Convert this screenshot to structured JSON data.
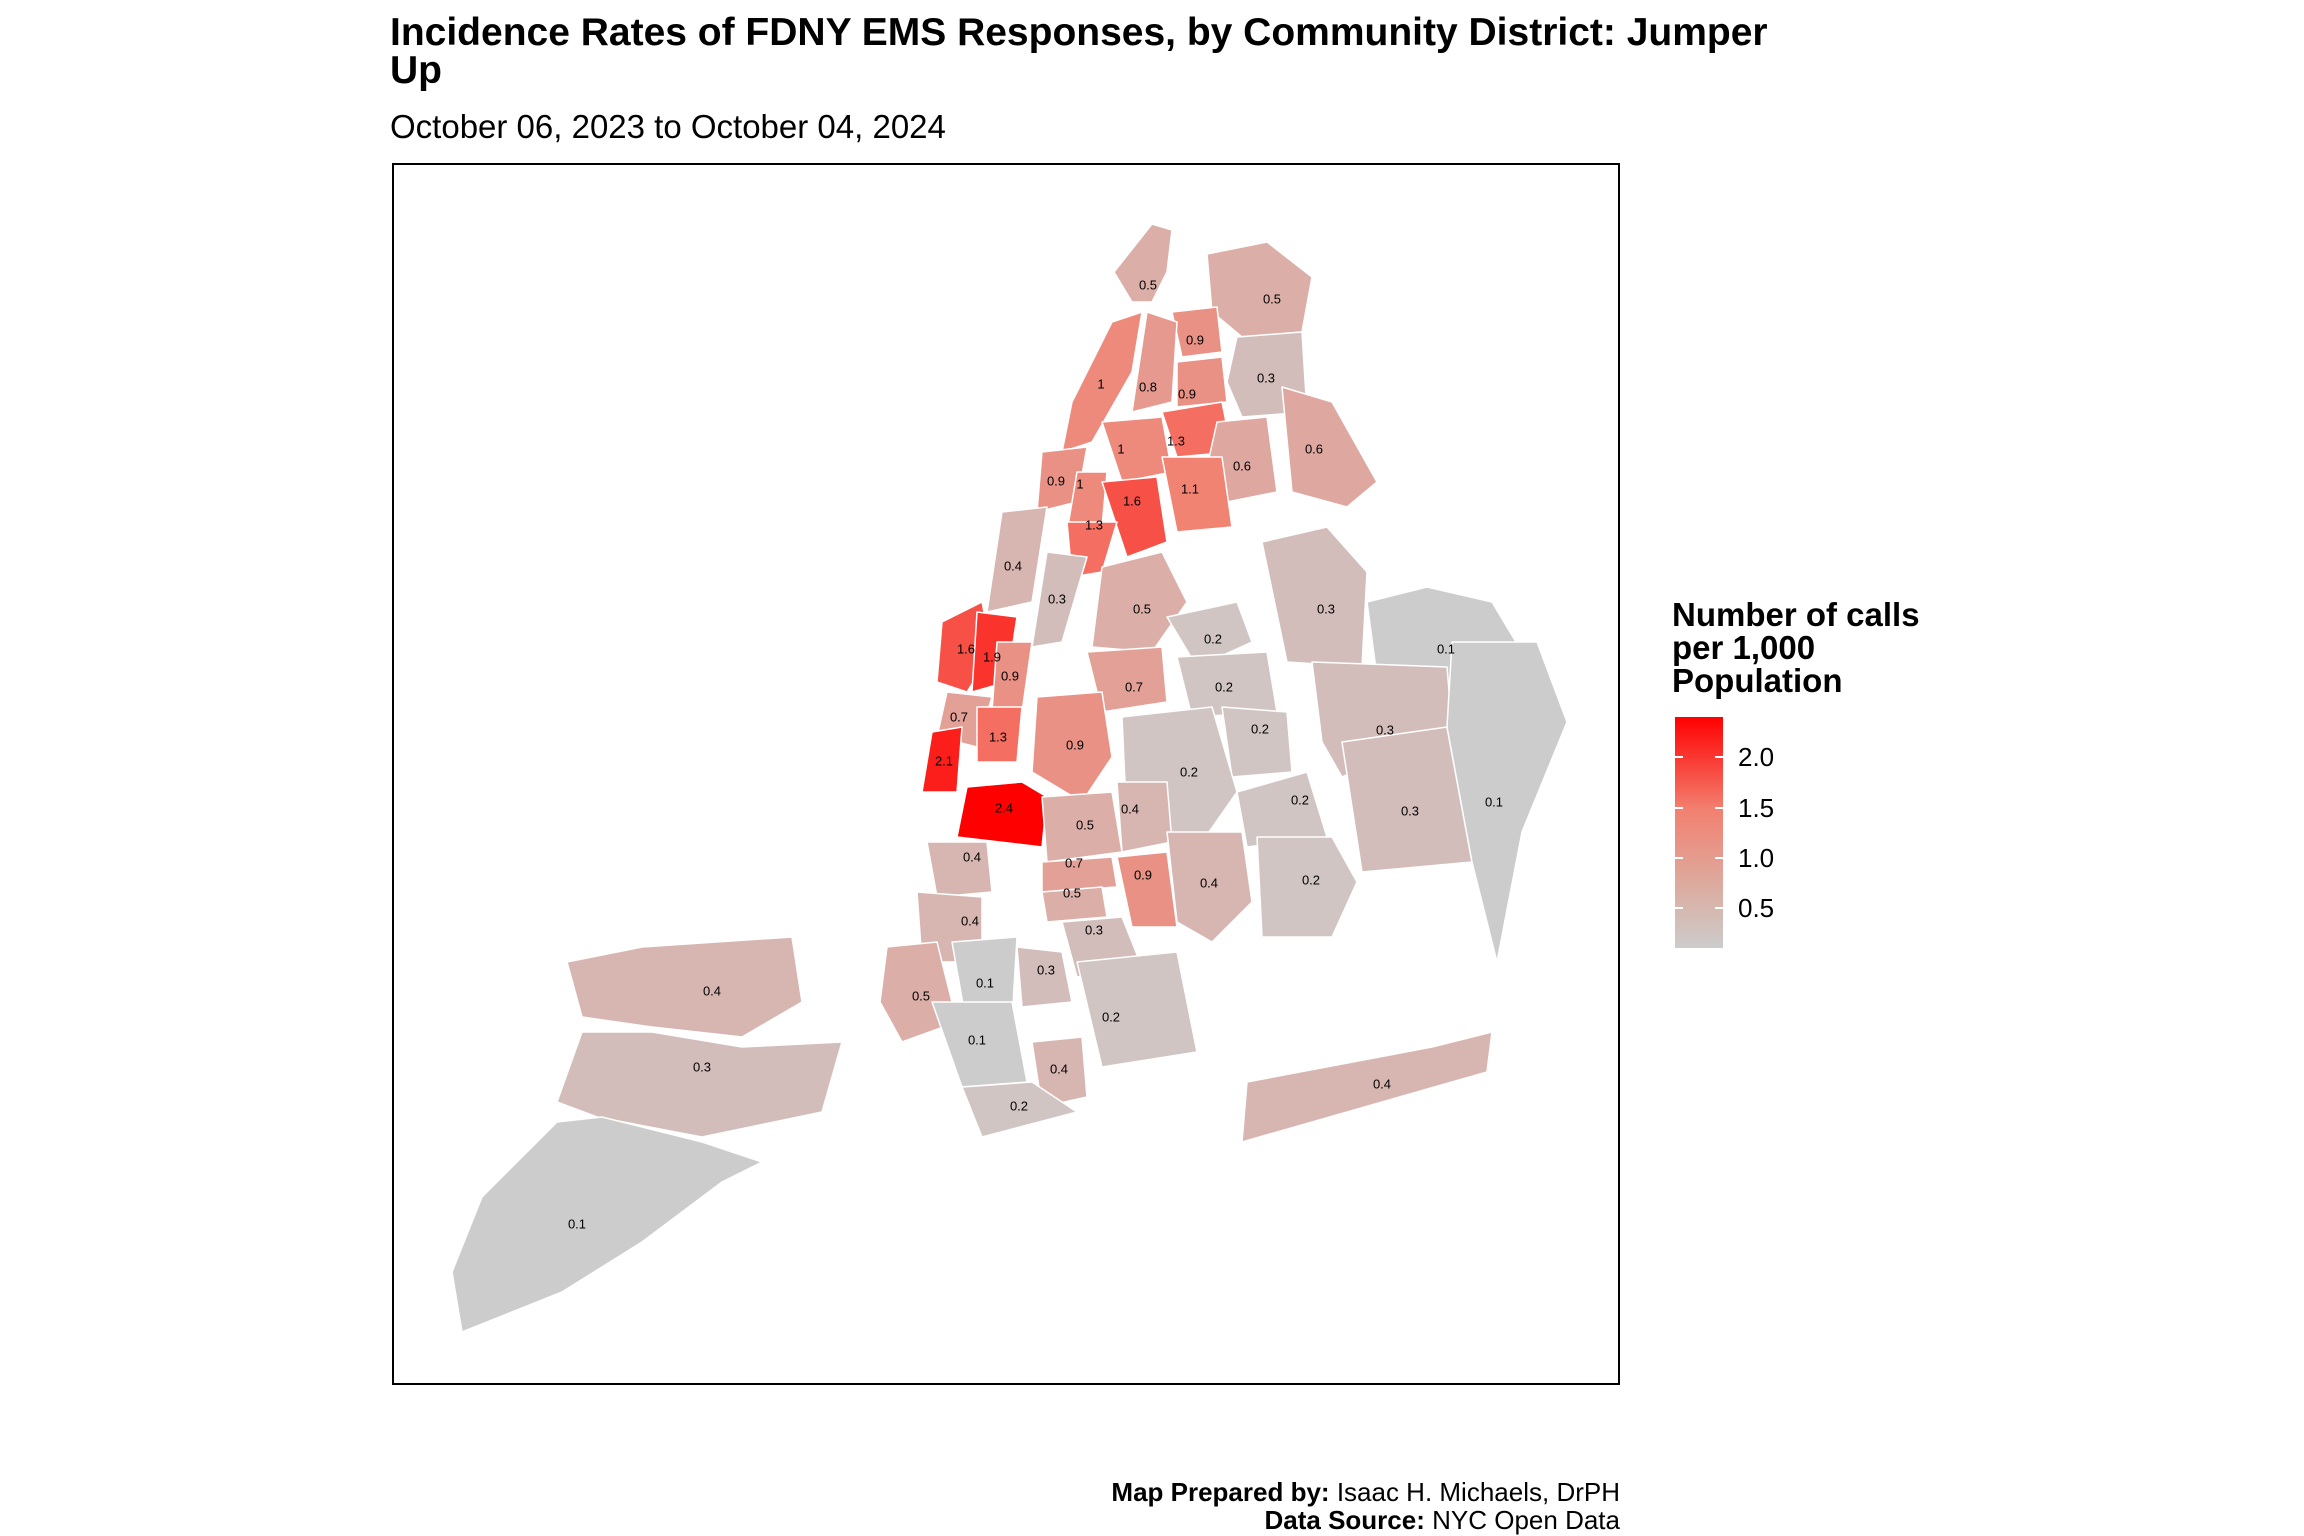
{
  "title": "Incidence Rates of FDNY EMS Responses, by Community District: Jumper Up",
  "subtitle": "October 06, 2023 to October 04, 2024",
  "legend": {
    "title_lines": [
      "Number of calls",
      "per 1,000",
      "Population"
    ],
    "ticks": [
      "2.0",
      "1.5",
      "1.0",
      "0.5"
    ],
    "colors": {
      "high": "#ff0000",
      "mid": "#f28070",
      "low": "#cccccc"
    },
    "range": [
      0.1,
      2.4
    ]
  },
  "caption": {
    "prepared_label": "Map Prepared by:",
    "prepared_value": "Isaac H. Michaels, DrPH",
    "source_label": "Data Source:",
    "source_value": "NYC Open Data"
  },
  "districts": [
    {
      "label": "0.5"
    },
    {
      "label": "0.5"
    },
    {
      "label": "0.9"
    },
    {
      "label": "0.3"
    },
    {
      "label": "1"
    },
    {
      "label": "0.8"
    },
    {
      "label": "0.9"
    },
    {
      "label": "1.3"
    },
    {
      "label": "1"
    },
    {
      "label": "0.6"
    },
    {
      "label": "0.6"
    },
    {
      "label": "0.9"
    },
    {
      "label": "1"
    },
    {
      "label": "1.6"
    },
    {
      "label": "1.1"
    },
    {
      "label": "1.3"
    },
    {
      "label": "0.4"
    },
    {
      "label": "0.3"
    },
    {
      "label": "0.5"
    },
    {
      "label": "0.3"
    },
    {
      "label": "0.1"
    },
    {
      "label": "0.2"
    },
    {
      "label": "1.6"
    },
    {
      "label": "1.9"
    },
    {
      "label": "0.9"
    },
    {
      "label": "0.2"
    },
    {
      "label": "0.7"
    },
    {
      "label": "0.7"
    },
    {
      "label": "1.3"
    },
    {
      "label": "0.2"
    },
    {
      "label": "0.3"
    },
    {
      "label": "2.1"
    },
    {
      "label": "0.9"
    },
    {
      "label": "0.2"
    },
    {
      "label": "2.4"
    },
    {
      "label": "0.5"
    },
    {
      "label": "0.4"
    },
    {
      "label": "0.2"
    },
    {
      "label": "0.3"
    },
    {
      "label": "0.1"
    },
    {
      "label": "0.4"
    },
    {
      "label": "0.7"
    },
    {
      "label": "0.9"
    },
    {
      "label": "0.4"
    },
    {
      "label": "0.2"
    },
    {
      "label": "0.5"
    },
    {
      "label": "0.4"
    },
    {
      "label": "0.3"
    },
    {
      "label": "0.1"
    },
    {
      "label": "0.3"
    },
    {
      "label": "0.5"
    },
    {
      "label": "0.2"
    },
    {
      "label": "0.4"
    },
    {
      "label": "0.1"
    },
    {
      "label": "0.4"
    },
    {
      "label": "0.2"
    },
    {
      "label": "0.4"
    },
    {
      "label": "0.3"
    },
    {
      "label": "0.1"
    }
  ]
}
